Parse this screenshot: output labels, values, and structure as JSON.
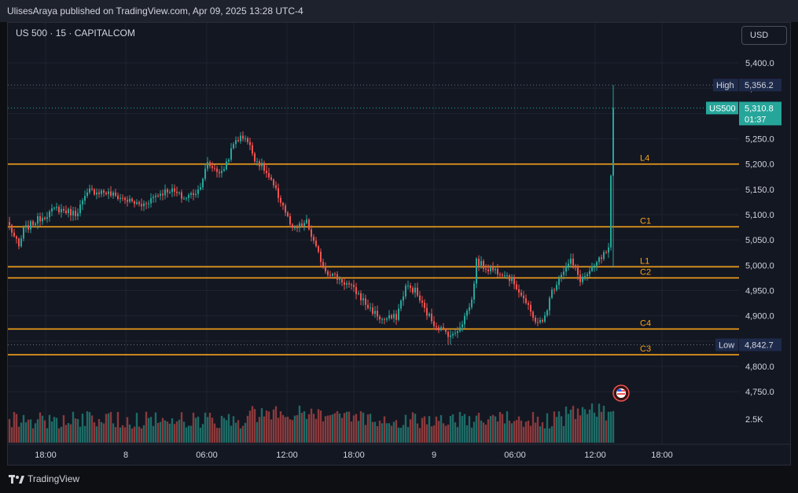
{
  "header": {
    "published_text": "UlisesAraya published on TradingView.com, Apr 09, 2025 13:28 UTC-4"
  },
  "symbol": {
    "label": "US 500 · 15 · CAPITALCOM"
  },
  "currency": {
    "label": "USD"
  },
  "footer": {
    "brand": "TradingView"
  },
  "colors": {
    "up": "#26a69a",
    "down": "#ef5350",
    "level_line": "#f7a21b",
    "background": "#131722",
    "grid": "#1f2330"
  },
  "chart_data": {
    "type": "candlestick",
    "symbol": "US 500",
    "interval": "15",
    "price_axis": {
      "ticks": [
        5400,
        5350,
        5300,
        5250,
        5200,
        5150,
        5100,
        5050,
        5000,
        4950,
        4900,
        4850,
        4800,
        4750
      ],
      "tick_labels": [
        "5,400.0",
        "5,350.0",
        "5,300.0",
        "5,250.0",
        "5,200.0",
        "5,150.0",
        "5,100.0",
        "5,050.0",
        "5,000.0",
        "4,950.0",
        "4,900.0",
        "4,850.0",
        "4,800.0",
        "4,750.0"
      ],
      "ylim": [
        4725,
        5430
      ]
    },
    "volume_axis": {
      "tick_label": "2.5K"
    },
    "time_axis": {
      "labels": [
        "18:00",
        "8",
        "06:00",
        "12:00",
        "18:00",
        "9",
        "06:00",
        "12:00",
        "18:00"
      ]
    },
    "levels": [
      {
        "name": "L4",
        "price": 5200
      },
      {
        "name": "C1",
        "price": 5076
      },
      {
        "name": "L1",
        "price": 4997
      },
      {
        "name": "C2",
        "price": 4975
      },
      {
        "name": "C4",
        "price": 4874
      },
      {
        "name": "C3",
        "price": 4823
      }
    ],
    "markers": {
      "high": {
        "label": "High",
        "value": "5,356.2",
        "price": 5356.2
      },
      "low": {
        "label": "Low",
        "value": "4,842.7",
        "price": 4842.7
      },
      "last": {
        "label": "US500",
        "value": "5,310.8",
        "countdown": "01:37",
        "price": 5310.8
      }
    },
    "anchors": [
      [
        0,
        5078
      ],
      [
        4,
        5035
      ],
      [
        6,
        5070
      ],
      [
        12,
        5090
      ],
      [
        20,
        5112
      ],
      [
        28,
        5102
      ],
      [
        34,
        5147
      ],
      [
        40,
        5145
      ],
      [
        48,
        5132
      ],
      [
        56,
        5118
      ],
      [
        62,
        5138
      ],
      [
        68,
        5150
      ],
      [
        74,
        5132
      ],
      [
        80,
        5148
      ],
      [
        84,
        5200
      ],
      [
        90,
        5182
      ],
      [
        96,
        5248
      ],
      [
        100,
        5255
      ],
      [
        104,
        5212
      ],
      [
        108,
        5190
      ],
      [
        112,
        5155
      ],
      [
        116,
        5118
      ],
      [
        120,
        5068
      ],
      [
        126,
        5085
      ],
      [
        130,
        5032
      ],
      [
        134,
        4990
      ],
      [
        140,
        4972
      ],
      [
        144,
        4960
      ],
      [
        148,
        4942
      ],
      [
        152,
        4918
      ],
      [
        158,
        4892
      ],
      [
        164,
        4898
      ],
      [
        168,
        4958
      ],
      [
        172,
        4950
      ],
      [
        176,
        4912
      ],
      [
        180,
        4885
      ],
      [
        184,
        4870
      ],
      [
        188,
        4860
      ],
      [
        192,
        4888
      ],
      [
        196,
        4930
      ],
      [
        198,
        5008
      ],
      [
        202,
        4995
      ],
      [
        206,
        4990
      ],
      [
        210,
        4985
      ],
      [
        214,
        4965
      ],
      [
        218,
        4935
      ],
      [
        222,
        4895
      ],
      [
        226,
        4885
      ],
      [
        230,
        4948
      ],
      [
        234,
        4985
      ],
      [
        238,
        5008
      ],
      [
        242,
        4972
      ],
      [
        246,
        4985
      ],
      [
        250,
        5010
      ],
      [
        254,
        5030
      ],
      [
        256,
        5310.8
      ]
    ]
  }
}
